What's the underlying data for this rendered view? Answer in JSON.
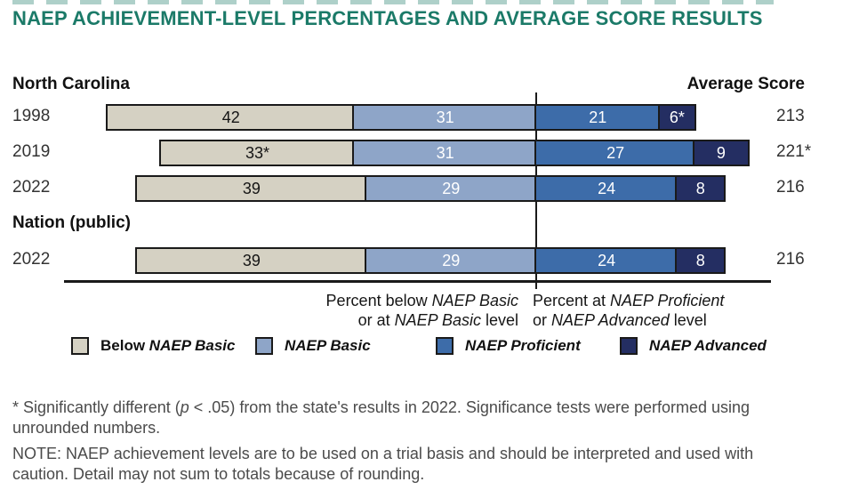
{
  "title": "NAEP ACHIEVEMENT-LEVEL PERCENTAGES AND AVERAGE SCORE RESULTS",
  "colors": {
    "title_text": "#1B7A68",
    "below_basic": "#D5D1C3",
    "basic": "#8EA5C8",
    "proficient": "#3D6CA9",
    "advanced": "#242E62",
    "bar_border": "#1A1A1A",
    "axis_line": "#1A1A1A",
    "heading_text": "#111111",
    "value_text": "#333333",
    "footnote_text": "#4B4B4B"
  },
  "chart_data": {
    "type": "bar",
    "variant": "horizontal-stacked-diverging",
    "unit": "percent",
    "anchor_note": "all bars aligned on the boundary between NAEP Basic and NAEP Proficient",
    "right_header": "Average Score",
    "series": [
      "Below NAEP Basic",
      "NAEP Basic",
      "NAEP Proficient",
      "NAEP Advanced"
    ],
    "groups": [
      {
        "header": "North Carolina",
        "rows": [
          {
            "year": "1998",
            "values": [
              42,
              31,
              21,
              6
            ],
            "labels": [
              "42",
              "31",
              "21",
              "6*"
            ],
            "average_score": "213"
          },
          {
            "year": "2019",
            "values": [
              33,
              31,
              27,
              9
            ],
            "labels": [
              "33*",
              "31",
              "27",
              "9"
            ],
            "average_score": "221*"
          },
          {
            "year": "2022",
            "values": [
              39,
              29,
              24,
              8
            ],
            "labels": [
              "39",
              "29",
              "24",
              "8"
            ],
            "average_score": "216"
          }
        ]
      },
      {
        "header": "Nation (public)",
        "rows": [
          {
            "year": "2022",
            "values": [
              39,
              29,
              24,
              8
            ],
            "labels": [
              "39",
              "29",
              "24",
              "8"
            ],
            "average_score": "216"
          }
        ]
      }
    ],
    "axis_labels": {
      "left_lines": [
        [
          {
            "t": "Percent below "
          },
          {
            "t": "NAEP Basic",
            "i": true
          }
        ],
        [
          {
            "t": "or at "
          },
          {
            "t": "NAEP Basic",
            "i": true
          },
          {
            "t": " level"
          }
        ]
      ],
      "right_lines": [
        [
          {
            "t": "Percent at "
          },
          {
            "t": "NAEP Proficient",
            "i": true
          }
        ],
        [
          {
            "t": "or "
          },
          {
            "t": "NAEP Advanced",
            "i": true
          },
          {
            "t": " level"
          }
        ]
      ]
    },
    "legend": [
      {
        "color_key": "below_basic",
        "parts": [
          {
            "t": "Below "
          },
          {
            "t": "NAEP Basic",
            "i": true
          }
        ]
      },
      {
        "color_key": "basic",
        "parts": [
          {
            "t": "NAEP Basic",
            "i": true
          }
        ]
      },
      {
        "color_key": "proficient",
        "parts": [
          {
            "t": "NAEP Proficient",
            "i": true
          }
        ]
      },
      {
        "color_key": "advanced",
        "parts": [
          {
            "t": "NAEP Advanced",
            "i": true
          }
        ]
      }
    ]
  },
  "footnotes": [
    {
      "parts": [
        {
          "t": "*  Significantly different ("
        },
        {
          "t": "p",
          "i": true
        },
        {
          "t": " < .05) from the state's results in 2022. Significance tests were performed using unrounded numbers."
        }
      ]
    },
    {
      "parts": [
        {
          "t": "NOTE:  NAEP achievement levels are to be used on a trial basis and should be interpreted and used with caution. Detail may not sum to totals because of rounding."
        }
      ]
    }
  ]
}
